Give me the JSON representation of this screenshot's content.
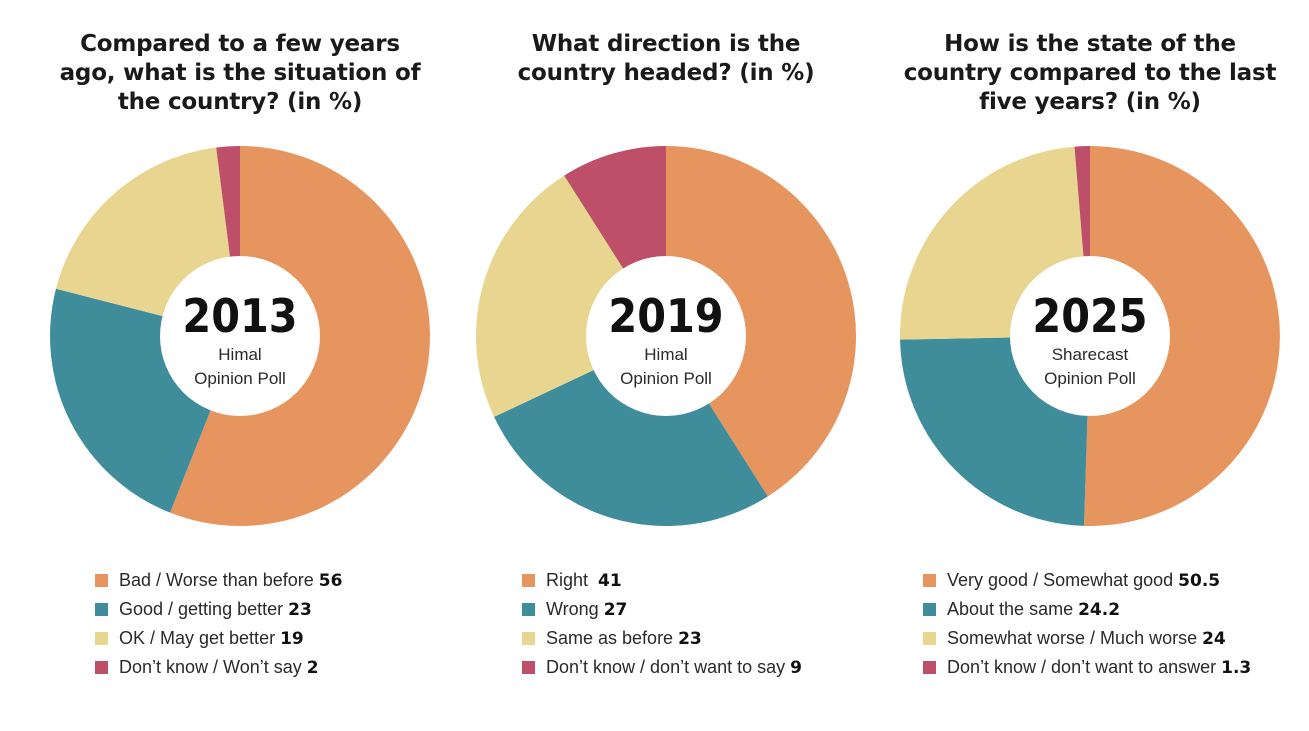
{
  "chart_data": [
    {
      "type": "pie",
      "title": "Compared to a few years\nago, what is the situation of\nthe country? (in %)",
      "center_year": "2013",
      "center_line1": "Himal",
      "center_line2": "Opinion Poll",
      "categories": [
        "Bad / Worse than before",
        "Good / getting better",
        "OK / May get better",
        "Don’t know / Won’t say"
      ],
      "values": [
        56,
        23,
        19,
        2
      ],
      "value_labels": [
        "56",
        "23",
        "19",
        "2"
      ],
      "colors": [
        "#E5955D",
        "#3F8D9B",
        "#E8D690",
        "#BD5068"
      ]
    },
    {
      "type": "pie",
      "title": "What direction is the\ncountry headed? (in %)",
      "center_year": "2019",
      "center_line1": "Himal",
      "center_line2": "Opinion Poll",
      "categories": [
        "Right ",
        "Wrong",
        "Same as before",
        "Don’t know / don’t want to say"
      ],
      "values": [
        41,
        27,
        23,
        9
      ],
      "value_labels": [
        "41",
        "27",
        "23",
        "9"
      ],
      "colors": [
        "#E5955D",
        "#3F8D9B",
        "#E8D690",
        "#BD5068"
      ]
    },
    {
      "type": "pie",
      "title": "How is the state of the\ncountry compared to the last\nfive years? (in %)",
      "center_year": "2025",
      "center_line1": "Sharecast",
      "center_line2": "Opinion Poll",
      "categories": [
        "Very good / Somewhat good",
        "About the same",
        "Somewhat worse / Much worse",
        "Don’t know / don’t want to answer"
      ],
      "values": [
        50.5,
        24.2,
        24,
        1.3
      ],
      "value_labels": [
        "50.5",
        "24.2",
        "24",
        "1.3"
      ],
      "colors": [
        "#E5955D",
        "#3F8D9B",
        "#E8D690",
        "#BD5068"
      ]
    }
  ]
}
